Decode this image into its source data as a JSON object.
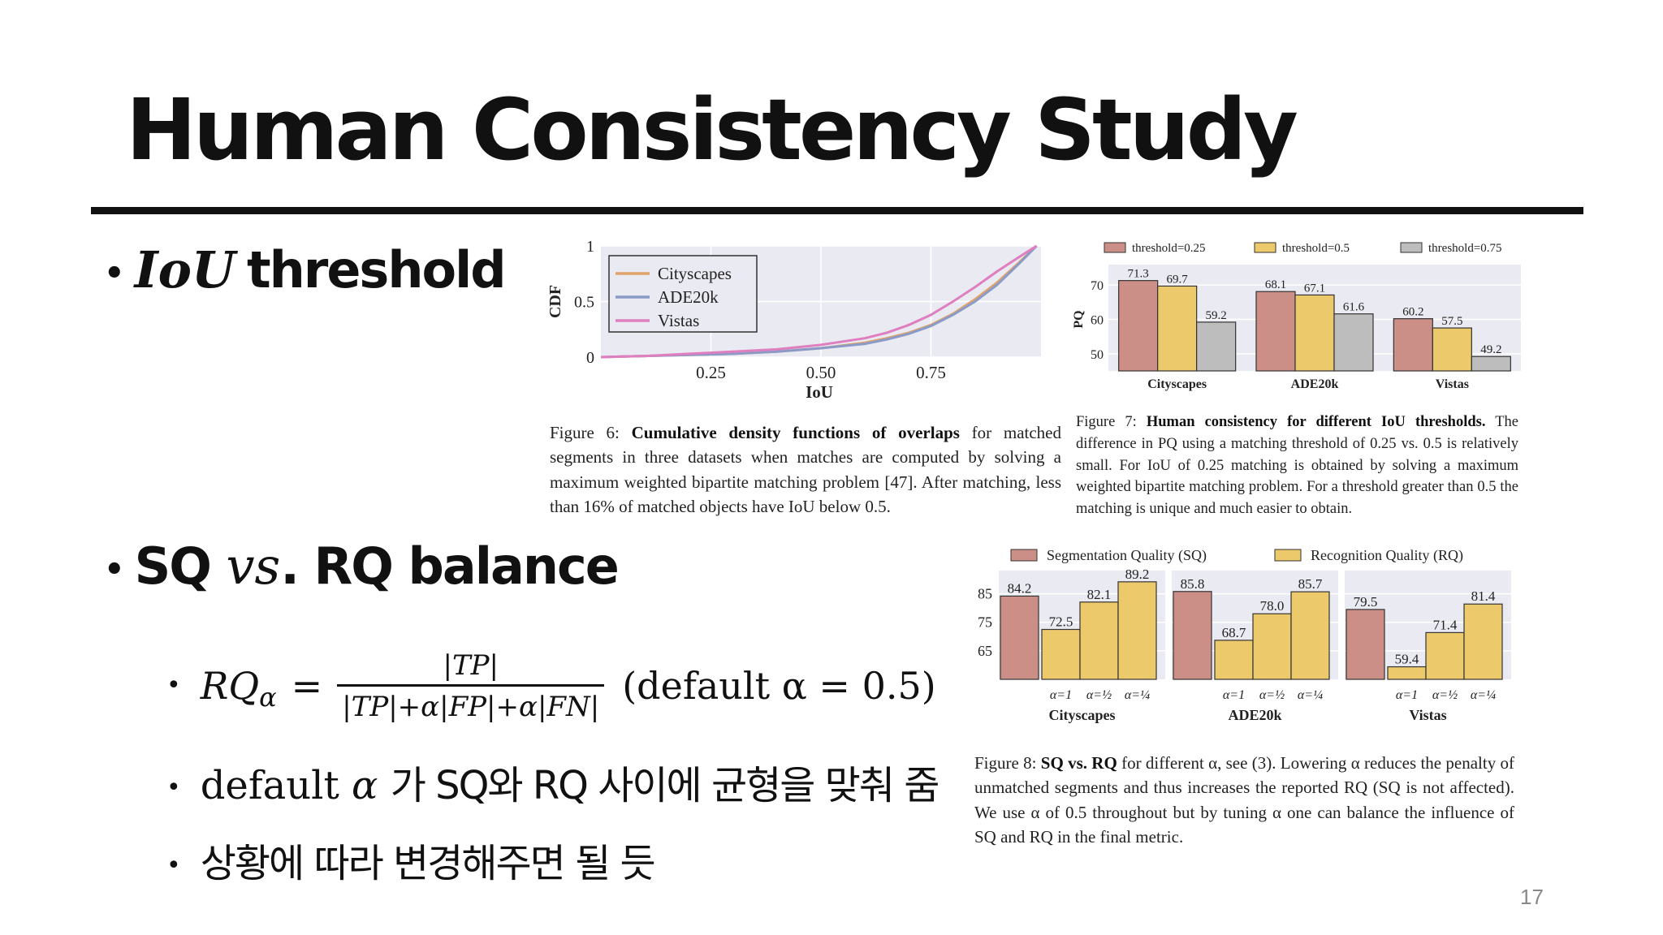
{
  "title": "Human Consistency Study",
  "bullets": {
    "b1_math": "IoU",
    "b1_text": "threshold",
    "b2_pre": "SQ",
    "b2_math": "vs",
    "b2_post": ". RQ balance",
    "formula_lhs": "RQ",
    "formula_sub": "α",
    "formula_eq": "=",
    "formula_num": "|TP|",
    "formula_den": "|TP|+α|FP|+α|FN|",
    "formula_default": "(default α = 0.5)",
    "sub2_pre": "default",
    "sub2_alpha": "α",
    "sub2_post": "가 SQ와 RQ 사이에 균형을 맞춰 줌",
    "sub3": "상황에 따라 변경해주면 될 듯"
  },
  "fig6": {
    "caption_label": "Figure 6:",
    "caption_bold": "Cumulative density functions of overlaps",
    "caption_rest": "for matched segments in three datasets when matches are computed by solving a maximum weighted bipartite matching problem [47]. After matching, less than 16% of matched objects have IoU below 0.5."
  },
  "fig7": {
    "caption_label": "Figure 7:",
    "caption_bold": "Human consistency for different IoU thresholds.",
    "caption_rest": "The difference in PQ using a matching threshold of 0.25 vs. 0.5 is relatively small. For IoU of 0.25 matching is obtained by solving a maximum weighted bipartite matching problem. For a threshold greater than 0.5 the matching is unique and much easier to obtain."
  },
  "fig8": {
    "caption_label": "Figure 8:",
    "caption_bold": "SQ vs. RQ",
    "caption_rest": "for different α, see (3). Lowering α reduces the penalty of unmatched segments and thus increases the reported RQ (SQ is not affected). We use α of 0.5 throughout but by tuning α one can balance the influence of SQ and RQ in the final metric."
  },
  "page_number": "17",
  "chart_data": [
    {
      "type": "line",
      "title": "",
      "xlabel": "IoU",
      "ylabel": "CDF",
      "xlim": [
        0,
        1
      ],
      "ylim": [
        0,
        1
      ],
      "xticks": [
        "0.25",
        "0.50",
        "0.75"
      ],
      "yticks": [
        "0",
        "0.5",
        "1"
      ],
      "legend": "top-left",
      "grid": true,
      "series": [
        {
          "name": "Cityscapes",
          "color": "#e0a36a",
          "x": [
            0,
            0.1,
            0.2,
            0.3,
            0.4,
            0.5,
            0.6,
            0.65,
            0.7,
            0.75,
            0.8,
            0.85,
            0.9,
            0.95,
            0.99
          ],
          "y": [
            0,
            0.01,
            0.02,
            0.03,
            0.05,
            0.08,
            0.13,
            0.17,
            0.22,
            0.29,
            0.39,
            0.52,
            0.67,
            0.85,
            1.0
          ]
        },
        {
          "name": "ADE20k",
          "color": "#8a9bc8",
          "x": [
            0,
            0.1,
            0.2,
            0.3,
            0.4,
            0.5,
            0.6,
            0.65,
            0.7,
            0.75,
            0.8,
            0.85,
            0.9,
            0.95,
            0.99
          ],
          "y": [
            0,
            0.01,
            0.02,
            0.03,
            0.05,
            0.08,
            0.12,
            0.16,
            0.21,
            0.28,
            0.38,
            0.5,
            0.65,
            0.84,
            1.0
          ]
        },
        {
          "name": "Vistas",
          "color": "#df7fbf",
          "x": [
            0,
            0.1,
            0.2,
            0.3,
            0.4,
            0.5,
            0.6,
            0.65,
            0.7,
            0.75,
            0.8,
            0.85,
            0.9,
            0.95,
            0.99
          ],
          "y": [
            0,
            0.01,
            0.03,
            0.05,
            0.07,
            0.11,
            0.17,
            0.22,
            0.29,
            0.38,
            0.5,
            0.63,
            0.77,
            0.9,
            1.0
          ]
        }
      ]
    },
    {
      "type": "bar",
      "title": "",
      "xlabel": "",
      "ylabel": "PQ",
      "ylim": [
        45,
        75
      ],
      "yticks": [
        "50",
        "60",
        "70"
      ],
      "legend": "top",
      "categories": [
        "Cityscapes",
        "ADE20k",
        "Vistas"
      ],
      "series": [
        {
          "name": "threshold=0.25",
          "color": "#cc8f88",
          "values": [
            71.3,
            68.1,
            60.2
          ],
          "labels": [
            "71.3",
            "68.1",
            "60.2"
          ]
        },
        {
          "name": "threshold=0.5",
          "color": "#ecc96a",
          "values": [
            69.7,
            67.1,
            57.5
          ],
          "labels": [
            "69.7",
            "67.1",
            "57.5"
          ]
        },
        {
          "name": "threshold=0.75",
          "color": "#bdbdbd",
          "values": [
            59.2,
            61.6,
            49.2
          ],
          "labels": [
            "59.2",
            "61.6",
            "49.2"
          ]
        }
      ]
    },
    {
      "type": "bar",
      "title": "",
      "xlabel": "",
      "ylabel": "",
      "ylim": [
        55,
        92
      ],
      "yticks": [
        "65",
        "75",
        "85"
      ],
      "legend": "top",
      "legend_entries": [
        {
          "name": "Segmentation Quality (SQ)",
          "color": "#cc8f88"
        },
        {
          "name": "Recognition Quality (RQ)",
          "color": "#ecc96a"
        }
      ],
      "alpha_labels": [
        "α=1",
        "α=½",
        "α=¼"
      ],
      "groups": [
        {
          "name": "Cityscapes",
          "sq": 84.2,
          "sq_label": "84.2",
          "rq": [
            72.5,
            82.1,
            89.2
          ],
          "rq_labels": [
            "72.5",
            "82.1",
            "89.2"
          ]
        },
        {
          "name": "ADE20k",
          "sq": 85.8,
          "sq_label": "85.8",
          "rq": [
            68.7,
            78.0,
            85.7
          ],
          "rq_labels": [
            "68.7",
            "78.0",
            "85.7"
          ]
        },
        {
          "name": "Vistas",
          "sq": 79.5,
          "sq_label": "79.5",
          "rq": [
            59.4,
            71.4,
            81.4
          ],
          "rq_labels": [
            "59.4",
            "71.4",
            "81.4"
          ]
        }
      ]
    }
  ]
}
